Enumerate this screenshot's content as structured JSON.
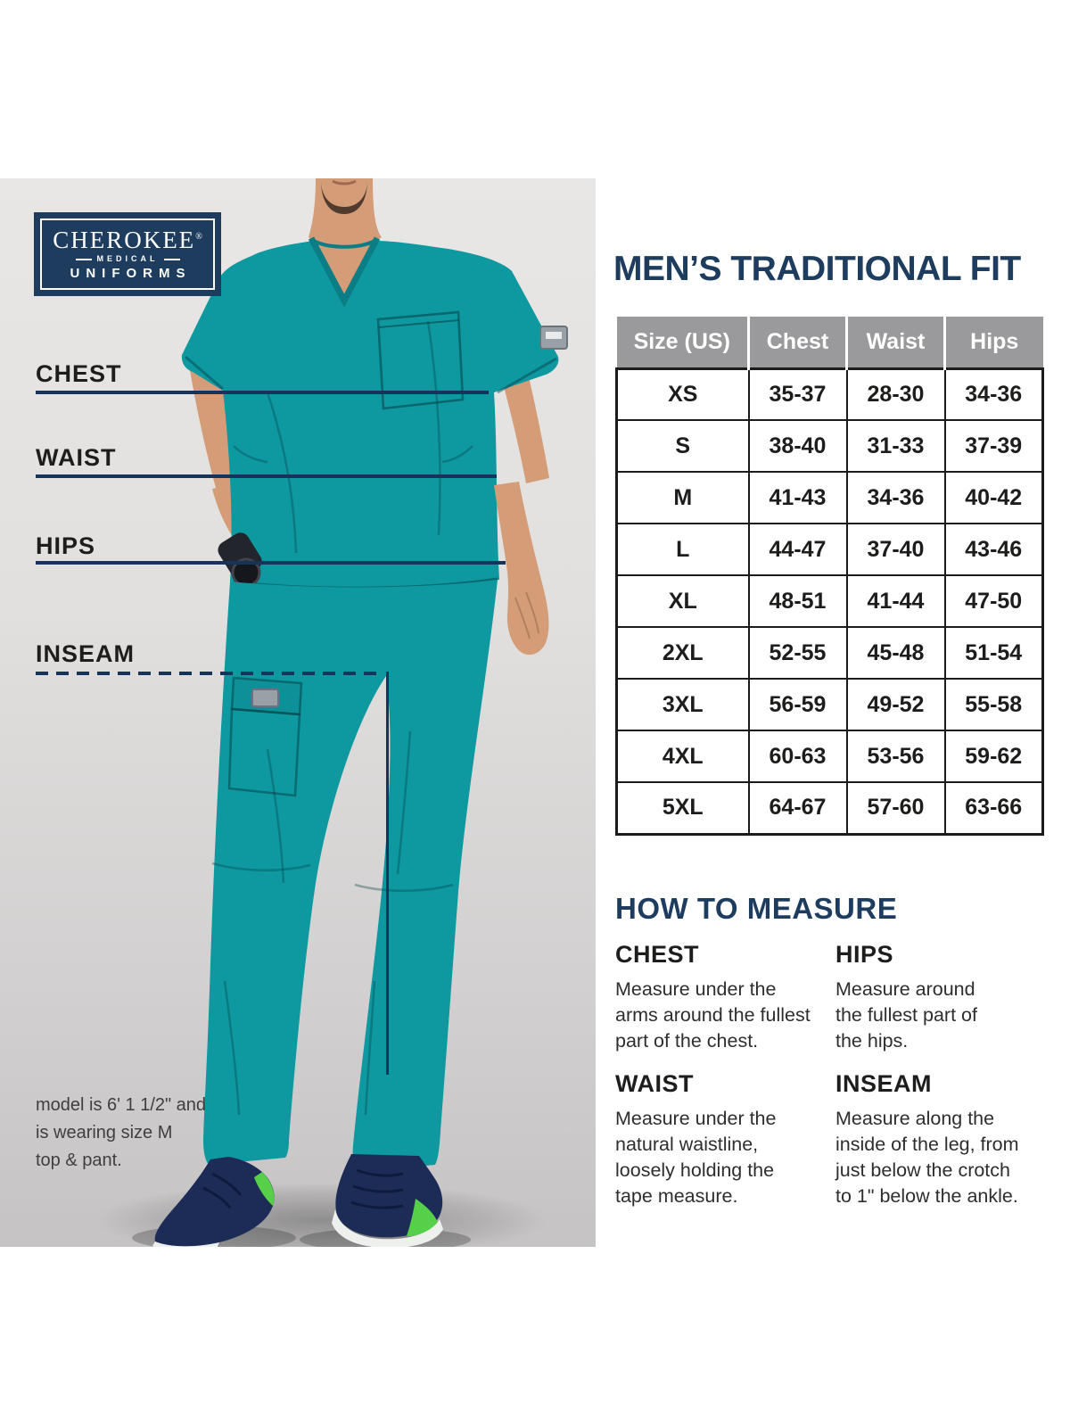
{
  "brand": {
    "primary": "CHEROKEE",
    "registered_mark": "®",
    "secondary": "MEDICAL",
    "tertiary": "UNIFORMS"
  },
  "measurements_overlay": {
    "chest_label": "CHEST",
    "waist_label": "WAIST",
    "hips_label": "HIPS",
    "inseam_label": "INSEAM"
  },
  "model_note": "model is 6' 1 1/2\" and\nis wearing size M\ntop & pant.",
  "size_chart": {
    "title": "MEN’S TRADITIONAL FIT",
    "columns": [
      "Size (US)",
      "Chest",
      "Waist",
      "Hips"
    ],
    "rows": [
      [
        "XS",
        "35-37",
        "28-30",
        "34-36"
      ],
      [
        "S",
        "38-40",
        "31-33",
        "37-39"
      ],
      [
        "M",
        "41-43",
        "34-36",
        "40-42"
      ],
      [
        "L",
        "44-47",
        "37-40",
        "43-46"
      ],
      [
        "XL",
        "48-51",
        "41-44",
        "47-50"
      ],
      [
        "2XL",
        "52-55",
        "45-48",
        "51-54"
      ],
      [
        "3XL",
        "56-59",
        "49-52",
        "55-58"
      ],
      [
        "4XL",
        "60-63",
        "53-56",
        "59-62"
      ],
      [
        "5XL",
        "64-67",
        "57-60",
        "63-66"
      ]
    ]
  },
  "how_to_measure": {
    "title": "HOW TO MEASURE",
    "sections": [
      {
        "label": "CHEST",
        "text": "Measure under the\narms around the fullest\npart of the chest."
      },
      {
        "label": "HIPS",
        "text": "Measure around\nthe fullest part of\nthe hips."
      },
      {
        "label": "WAIST",
        "text": "Measure under the\nnatural waistline,\nloosely holding the\ntape measure."
      },
      {
        "label": "INSEAM",
        "text": "Measure along the\ninside of the leg, from\njust below the crotch\nto 1\" below the ankle."
      }
    ]
  },
  "colors": {
    "navy": "#1d3c5e",
    "line_navy": "#16335c",
    "teal": "#0e98a0",
    "table_header_gray": "#9a999b",
    "text_black": "#1d1d1b"
  }
}
